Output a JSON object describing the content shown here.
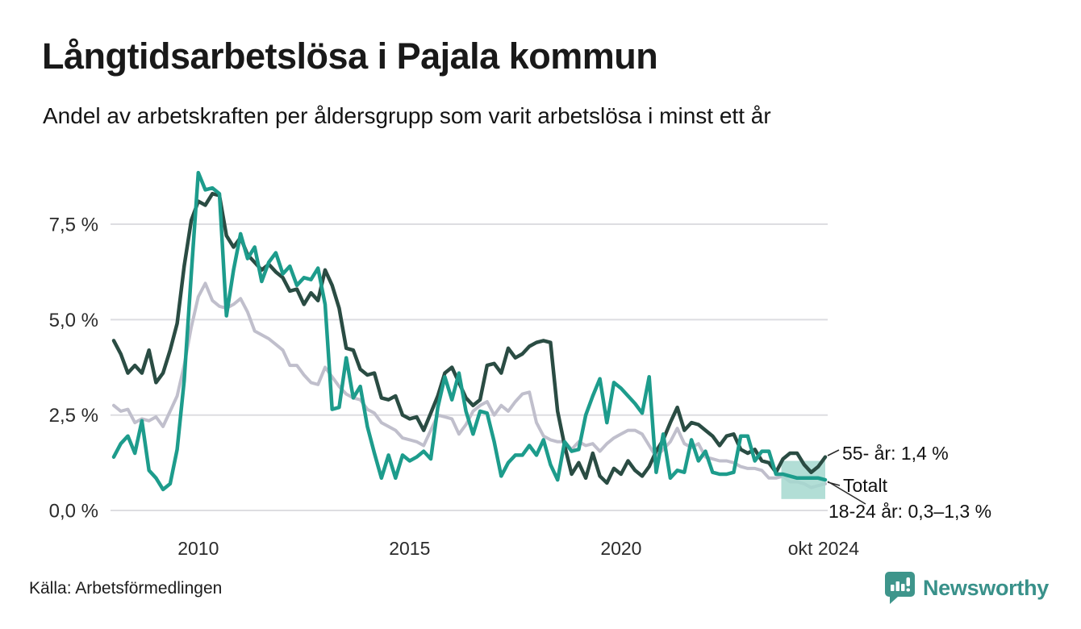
{
  "header": {
    "title": "Långtidsarbetslösa i Pajala kommun",
    "subtitle": "Andel av arbetskraften per åldersgrupp som varit arbetslösa i minst ett år"
  },
  "footer": {
    "source": "Källa: Arbetsförmedlingen",
    "brand": "Newsworthy"
  },
  "colors": {
    "age_55_plus": "#2a4c43",
    "age_18_24": "#1d9c8c",
    "total": "#c0bfcc",
    "band": "#a5d8cf",
    "grid": "#dddde1",
    "text": "#141414",
    "brand_teal": "#39918a"
  },
  "chart_data": {
    "type": "line",
    "title": "Långtidsarbetslösa i Pajala kommun",
    "subtitle": "Andel av arbetskraften per åldersgrupp som varit arbetslösa i minst ett år",
    "xlabel": "",
    "ylabel": "",
    "unit": "%",
    "x_range": [
      2008.0,
      2024.83
    ],
    "ylim": [
      0,
      9.3
    ],
    "grid": "horizontal",
    "legend_position": "right-annotations",
    "y_ticks": [
      {
        "value": 0,
        "label": "0,0 %"
      },
      {
        "value": 2.5,
        "label": "2,5 %"
      },
      {
        "value": 5,
        "label": "5,0 %"
      },
      {
        "value": 7.5,
        "label": "7,5 %"
      }
    ],
    "x_ticks": [
      {
        "value": 2010,
        "label": "2010"
      },
      {
        "value": 2015,
        "label": "2015"
      },
      {
        "value": 2020,
        "label": "2020"
      },
      {
        "value": 2024.79,
        "label": "okt 2024"
      }
    ],
    "series": [
      {
        "name": "Totalt",
        "color": "#c0bfcc",
        "width": 4,
        "end_label": "Totalt",
        "values": [
          2.75,
          2.6,
          2.65,
          2.3,
          2.4,
          2.35,
          2.45,
          2.2,
          2.6,
          3.0,
          3.8,
          4.8,
          5.6,
          5.95,
          5.5,
          5.35,
          5.3,
          5.4,
          5.55,
          5.2,
          4.7,
          4.6,
          4.5,
          4.35,
          4.2,
          3.8,
          3.8,
          3.55,
          3.35,
          3.3,
          3.75,
          3.5,
          3.25,
          3.05,
          2.95,
          2.9,
          2.65,
          2.55,
          2.3,
          2.2,
          2.1,
          1.9,
          1.85,
          1.8,
          1.7,
          2.1,
          2.5,
          2.45,
          2.4,
          2.0,
          2.25,
          2.6,
          2.75,
          2.85,
          2.5,
          2.75,
          2.6,
          2.85,
          3.05,
          3.1,
          2.3,
          1.95,
          1.85,
          1.8,
          1.8,
          1.6,
          1.8,
          1.7,
          1.75,
          1.55,
          1.75,
          1.9,
          2.0,
          2.1,
          2.1,
          2.0,
          1.7,
          1.4,
          1.6,
          1.8,
          2.15,
          1.75,
          1.65,
          1.75,
          1.4,
          1.35,
          1.3,
          1.3,
          1.25,
          1.15,
          1.1,
          1.1,
          1.05,
          0.85,
          0.85,
          0.9,
          0.75,
          0.75,
          0.7,
          0.6,
          0.65,
          0.7
        ]
      },
      {
        "name": "55- år",
        "color": "#2a4c43",
        "width": 4.5,
        "end_label": "55- år: 1,4 %",
        "values": [
          4.45,
          4.1,
          3.6,
          3.8,
          3.6,
          4.2,
          3.35,
          3.6,
          4.2,
          4.9,
          6.4,
          7.6,
          8.1,
          8.0,
          8.3,
          8.25,
          7.2,
          6.9,
          7.15,
          6.7,
          6.5,
          6.3,
          6.45,
          6.25,
          6.1,
          5.75,
          5.8,
          5.4,
          5.7,
          5.5,
          6.3,
          5.9,
          5.3,
          4.25,
          4.2,
          3.7,
          3.55,
          3.6,
          2.95,
          2.9,
          3.0,
          2.5,
          2.4,
          2.45,
          2.1,
          2.55,
          3.0,
          3.6,
          3.75,
          3.35,
          2.95,
          2.75,
          2.9,
          3.8,
          3.85,
          3.6,
          4.25,
          4.0,
          4.1,
          4.3,
          4.4,
          4.45,
          4.4,
          2.6,
          1.7,
          0.95,
          1.25,
          0.85,
          1.5,
          0.9,
          0.72,
          1.1,
          0.95,
          1.3,
          1.05,
          0.9,
          1.15,
          1.55,
          1.85,
          2.3,
          2.7,
          2.1,
          2.3,
          2.25,
          2.1,
          1.95,
          1.7,
          1.95,
          2.0,
          1.6,
          1.5,
          1.6,
          1.3,
          1.25,
          1.0,
          1.35,
          1.5,
          1.5,
          1.2,
          1.0,
          1.15,
          1.4
        ]
      },
      {
        "name": "18-24 år",
        "color": "#1d9c8c",
        "width": 4.5,
        "end_label": "18-24 år: 0,3–1,3 %",
        "values": [
          1.4,
          1.75,
          1.95,
          1.5,
          2.35,
          1.05,
          0.85,
          0.55,
          0.7,
          1.6,
          3.4,
          6.2,
          8.85,
          8.4,
          8.45,
          8.3,
          5.1,
          6.3,
          7.25,
          6.6,
          6.9,
          6.0,
          6.5,
          6.75,
          6.2,
          6.4,
          5.9,
          6.1,
          6.05,
          6.35,
          5.4,
          2.65,
          2.7,
          4.0,
          2.95,
          3.25,
          2.2,
          1.5,
          0.85,
          1.45,
          0.85,
          1.45,
          1.3,
          1.4,
          1.55,
          1.35,
          2.7,
          3.5,
          2.9,
          3.6,
          2.6,
          2.0,
          2.6,
          2.55,
          1.8,
          0.9,
          1.25,
          1.45,
          1.45,
          1.7,
          1.45,
          1.85,
          1.2,
          0.8,
          1.8,
          1.55,
          1.6,
          2.5,
          3.0,
          3.45,
          2.3,
          3.35,
          3.2,
          3.0,
          2.8,
          2.55,
          3.5,
          1.0,
          2.0,
          0.85,
          1.05,
          1.0,
          1.85,
          1.3,
          1.55,
          1.0,
          0.95,
          0.95,
          1.0,
          1.95,
          1.95,
          1.3,
          1.55,
          1.55,
          0.95,
          0.95,
          0.9,
          0.85,
          0.85,
          0.85,
          0.85,
          0.8
        ]
      }
    ],
    "confidence_band": {
      "series": "18-24 år",
      "x_from": 2023.79,
      "x_to": 2024.83,
      "low": 0.3,
      "high": 1.3,
      "color": "#a5d8cf",
      "label": "0,3–1,3 %"
    },
    "annotations": [
      {
        "series": "55- år",
        "label": "55- år: 1,4 %"
      },
      {
        "series": "Totalt",
        "label": "Totalt"
      },
      {
        "series": "18-24 år",
        "label": "18-24 år: 0,3–1,3 %"
      }
    ]
  }
}
